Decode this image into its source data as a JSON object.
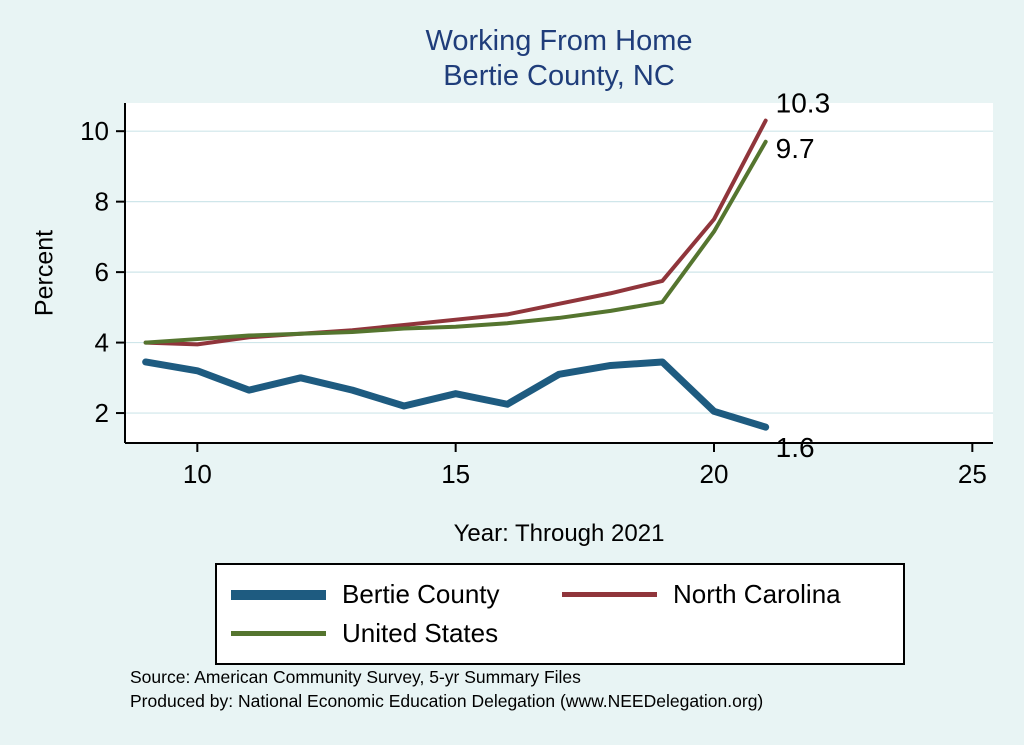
{
  "title": {
    "line1": "Working From Home",
    "line2": "Bertie County, NC"
  },
  "chart_data": {
    "type": "line",
    "x": [
      9,
      10,
      11,
      12,
      13,
      14,
      15,
      16,
      17,
      18,
      19,
      20,
      21
    ],
    "series": [
      {
        "name": "Bertie County",
        "color": "#1e5b80",
        "width": 7,
        "values": [
          3.45,
          3.2,
          2.65,
          3.0,
          2.65,
          2.2,
          2.55,
          2.25,
          3.1,
          3.35,
          3.45,
          2.05,
          1.6
        ],
        "end_label": "1.6",
        "label_dx": 10,
        "label_dy": 30
      },
      {
        "name": "North Carolina",
        "color": "#90353b",
        "width": 4,
        "values": [
          4.0,
          3.95,
          4.15,
          4.25,
          4.35,
          4.5,
          4.65,
          4.8,
          5.1,
          5.4,
          5.75,
          7.5,
          10.3
        ],
        "end_label": "10.3",
        "label_dx": 10,
        "label_dy": -8
      },
      {
        "name": "United States",
        "color": "#55752f",
        "width": 4,
        "values": [
          4.0,
          4.1,
          4.2,
          4.25,
          4.3,
          4.4,
          4.45,
          4.55,
          4.7,
          4.9,
          5.15,
          7.15,
          9.7
        ],
        "end_label": "9.7",
        "label_dx": 10,
        "label_dy": 16
      }
    ],
    "title": "Working From Home — Bertie County, NC",
    "xlabel": "Year: Through 2021",
    "ylabel": "Percent",
    "xlim": [
      8.6,
      25.4
    ],
    "ylim": [
      1.15,
      10.8
    ],
    "xticks": [
      10,
      15,
      20,
      25
    ],
    "yticks": [
      2,
      4,
      6,
      8,
      10
    ],
    "grid": true,
    "legend_position": "bottom"
  },
  "notes": {
    "source": "Source: American Community Survey, 5-yr Summary Files",
    "produced_by": "Produced by: National Economic Education Delegation (www.NEEDelegation.org)"
  },
  "colors": {
    "background": "#e8f4f4",
    "plot_background": "#ffffff",
    "grid": "#cfe6ea",
    "axis": "#000000",
    "title": "#1f3d7a",
    "bertie_county": "#1e5b80",
    "north_carolina": "#90353b",
    "united_states": "#55752f"
  }
}
